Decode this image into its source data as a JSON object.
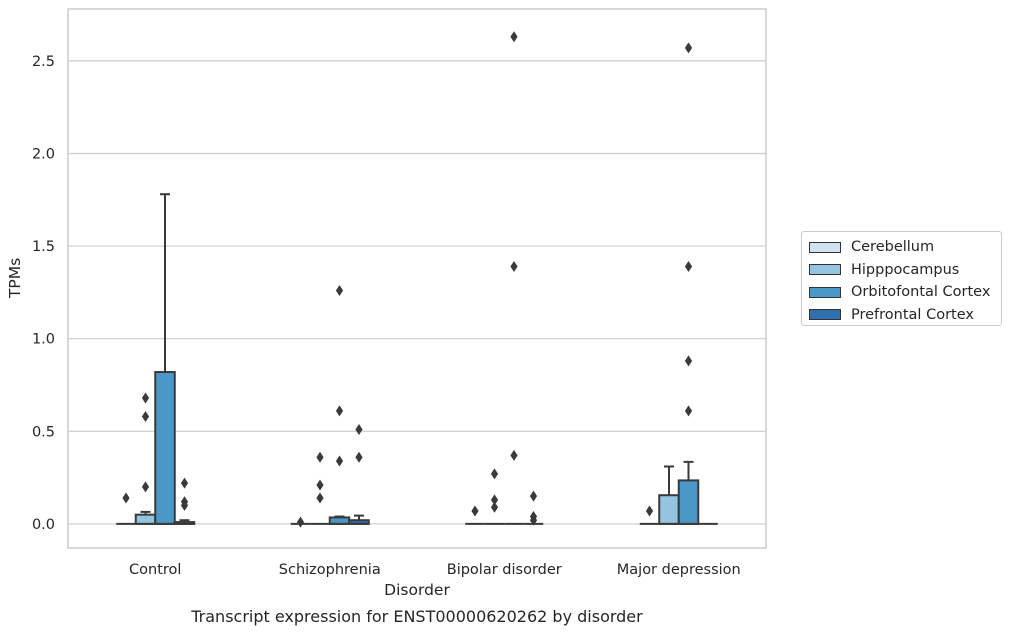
{
  "chart_data": {
    "type": "box",
    "title": "Transcript expression for ENST00000620262 by disorder",
    "xlabel": "Disorder",
    "ylabel": "TPMs",
    "ylim": [
      -0.13,
      2.78
    ],
    "yticks": [
      0.0,
      0.5,
      1.0,
      1.5,
      2.0,
      2.5
    ],
    "ytick_labels": [
      "0.0",
      "0.5",
      "1.0",
      "1.5",
      "2.0",
      "2.5"
    ],
    "categories": [
      "Control",
      "Schizophrenia",
      "Bipolar disorder",
      "Major depression"
    ],
    "grid": "horizontal",
    "legend_position": "right",
    "series": [
      {
        "name": "Cerebellum",
        "color": "#d0e1f2",
        "boxes": [
          {
            "q1": 0,
            "median": 0,
            "q3": 0,
            "whisker_low": 0,
            "whisker_high": 0,
            "outliers": [
              0.14
            ]
          },
          {
            "q1": 0,
            "median": 0,
            "q3": 0,
            "whisker_low": 0,
            "whisker_high": 0,
            "outliers": [
              0.01
            ]
          },
          {
            "q1": 0,
            "median": 0,
            "q3": 0,
            "whisker_low": 0,
            "whisker_high": 0,
            "outliers": [
              0.07
            ]
          },
          {
            "q1": 0,
            "median": 0,
            "q3": 0,
            "whisker_low": 0,
            "whisker_high": 0,
            "outliers": [
              0.07
            ]
          }
        ]
      },
      {
        "name": "Hipppocampus",
        "color": "#94c4df",
        "boxes": [
          {
            "q1": 0,
            "median": 0,
            "q3": 0.05,
            "whisker_low": 0,
            "whisker_high": 0.065,
            "outliers": [
              0.2,
              0.58,
              0.68
            ]
          },
          {
            "q1": 0,
            "median": 0,
            "q3": 0,
            "whisker_low": 0,
            "whisker_high": 0,
            "outliers": [
              0.14,
              0.21,
              0.36
            ]
          },
          {
            "q1": 0,
            "median": 0,
            "q3": 0,
            "whisker_low": 0,
            "whisker_high": 0,
            "outliers": [
              0.09,
              0.13,
              0.27
            ]
          },
          {
            "q1": 0,
            "median": 0,
            "q3": 0.155,
            "whisker_low": 0,
            "whisker_high": 0.31,
            "outliers": []
          }
        ]
      },
      {
        "name": "Orbitofontal Cortex",
        "color": "#4a98c9",
        "boxes": [
          {
            "q1": 0,
            "median": 0,
            "q3": 0.82,
            "whisker_low": 0,
            "whisker_high": 1.78,
            "outliers": []
          },
          {
            "q1": 0,
            "median": 0,
            "q3": 0.035,
            "whisker_low": 0,
            "whisker_high": 0.04,
            "outliers": [
              0.34,
              0.61,
              1.26
            ]
          },
          {
            "q1": 0,
            "median": 0,
            "q3": 0,
            "whisker_low": 0,
            "whisker_high": 0,
            "outliers": [
              0.37,
              1.39,
              2.63
            ]
          },
          {
            "q1": 0,
            "median": 0,
            "q3": 0.235,
            "whisker_low": 0,
            "whisker_high": 0.335,
            "outliers": [
              0.61,
              0.88,
              1.39,
              2.57
            ]
          }
        ]
      },
      {
        "name": "Prefrontal Cortex",
        "color": "#2e6fad",
        "boxes": [
          {
            "q1": 0,
            "median": 0,
            "q3": 0.01,
            "whisker_low": 0,
            "whisker_high": 0.02,
            "outliers": [
              0.1,
              0.12,
              0.22
            ]
          },
          {
            "q1": 0,
            "median": 0,
            "q3": 0.02,
            "whisker_low": 0,
            "whisker_high": 0.045,
            "outliers": [
              0.36,
              0.51
            ]
          },
          {
            "q1": 0,
            "median": 0,
            "q3": 0,
            "whisker_low": 0,
            "whisker_high": 0,
            "outliers": [
              0.02,
              0.04,
              0.15
            ]
          },
          {
            "q1": 0,
            "median": 0,
            "q3": 0,
            "whisker_low": 0,
            "whisker_high": 0,
            "outliers": []
          }
        ]
      }
    ]
  }
}
